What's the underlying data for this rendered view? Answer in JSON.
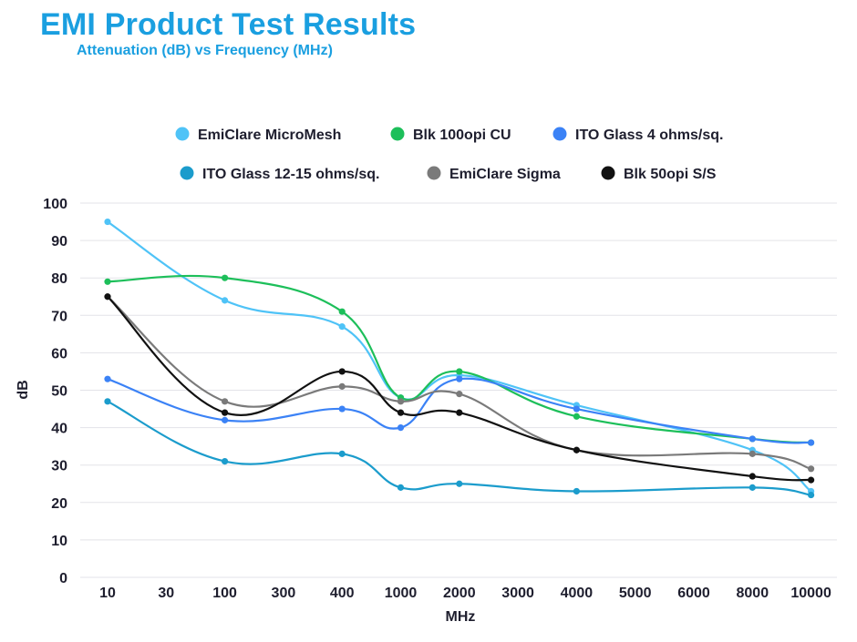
{
  "header": {
    "title": "EMI Product Test Results",
    "subtitle": "Attenuation (dB) vs Frequency (MHz)"
  },
  "chart_data": {
    "type": "line",
    "title": "EMI Product Test Results",
    "subtitle": "Attenuation (dB) vs Frequency (MHz)",
    "xlabel": "MHz",
    "ylabel": "dB",
    "ylim": [
      0,
      100
    ],
    "yticks": [
      0,
      10,
      20,
      30,
      40,
      50,
      60,
      70,
      80,
      90,
      100
    ],
    "categories": [
      "10",
      "30",
      "100",
      "300",
      "400",
      "1000",
      "2000",
      "3000",
      "4000",
      "5000",
      "6000",
      "8000",
      "10000"
    ],
    "grid": true,
    "legend_position": "top",
    "series": [
      {
        "name": "EmiClare MicroMesh",
        "color": "#4fc3f7",
        "points": [
          [
            "10",
            95
          ],
          [
            "100",
            74
          ],
          [
            "400",
            67
          ],
          [
            "1000",
            48
          ],
          [
            "2000",
            54
          ],
          [
            "4000",
            46
          ],
          [
            "8000",
            34
          ],
          [
            "10000",
            23
          ]
        ]
      },
      {
        "name": "Blk 100opi CU",
        "color": "#1dbf5a",
        "points": [
          [
            "10",
            79
          ],
          [
            "100",
            80
          ],
          [
            "400",
            71
          ],
          [
            "1000",
            48
          ],
          [
            "2000",
            55
          ],
          [
            "4000",
            43
          ],
          [
            "8000",
            37
          ],
          [
            "10000",
            36
          ]
        ]
      },
      {
        "name": "ITO Glass 4 ohms/sq.",
        "color": "#3b82f6",
        "points": [
          [
            "10",
            53
          ],
          [
            "100",
            42
          ],
          [
            "400",
            45
          ],
          [
            "1000",
            40
          ],
          [
            "2000",
            53
          ],
          [
            "4000",
            45
          ],
          [
            "8000",
            37
          ],
          [
            "10000",
            36
          ]
        ]
      },
      {
        "name": "ITO Glass 12-15 ohms/sq.",
        "color": "#1b9ccc",
        "points": [
          [
            "10",
            47
          ],
          [
            "100",
            31
          ],
          [
            "400",
            33
          ],
          [
            "1000",
            24
          ],
          [
            "2000",
            25
          ],
          [
            "4000",
            23
          ],
          [
            "8000",
            24
          ],
          [
            "10000",
            22
          ]
        ]
      },
      {
        "name": "EmiClare Sigma",
        "color": "#7a7a7a",
        "points": [
          [
            "10",
            75
          ],
          [
            "100",
            47
          ],
          [
            "400",
            51
          ],
          [
            "1000",
            47
          ],
          [
            "2000",
            49
          ],
          [
            "4000",
            34
          ],
          [
            "8000",
            33
          ],
          [
            "10000",
            29
          ]
        ]
      },
      {
        "name": "Blk 50opi S/S",
        "color": "#111111",
        "points": [
          [
            "10",
            75
          ],
          [
            "100",
            44
          ],
          [
            "400",
            55
          ],
          [
            "1000",
            44
          ],
          [
            "2000",
            44
          ],
          [
            "4000",
            34
          ],
          [
            "8000",
            27
          ],
          [
            "10000",
            26
          ]
        ]
      }
    ]
  }
}
